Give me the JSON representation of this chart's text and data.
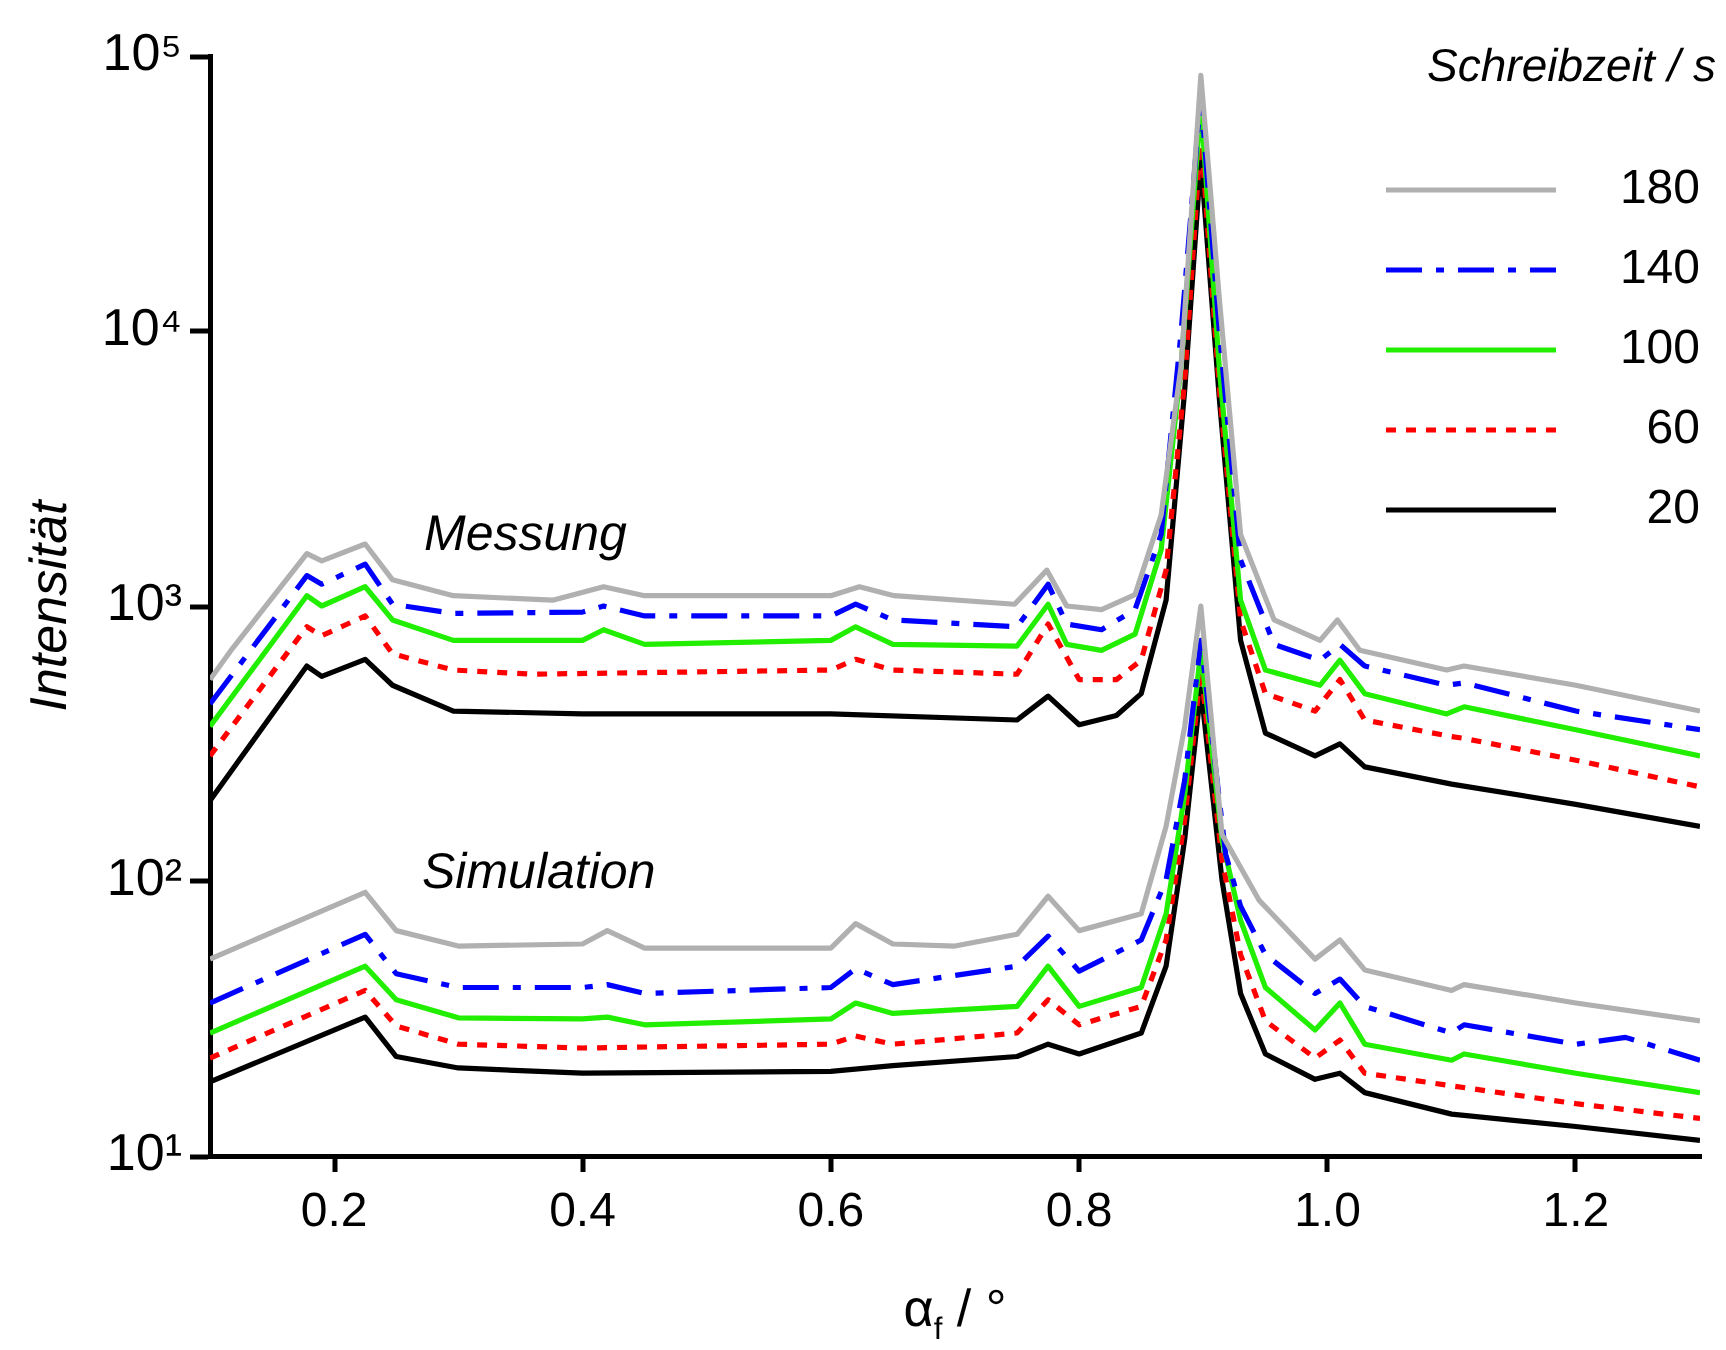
{
  "chart_data": {
    "type": "line",
    "xlabel": "α$_{f}$ / °",
    "ylabel": "Intensität",
    "legend_title": "Schreibzeit / s",
    "log": "y",
    "grid": false,
    "legend": "top right",
    "marker": "none",
    "xlim": [
      0.1,
      1.3
    ],
    "xticks": [
      0.2,
      0.4,
      0.6,
      0.8,
      {
        "value": 1,
        "label": "1.0"
      },
      1.2
    ],
    "ylim": [
      10,
      100000
    ],
    "yticks": [
      {
        "value": 10,
        "label": "10¹"
      },
      {
        "value": 100,
        "label": "10²"
      },
      {
        "value": 1000,
        "label": "10³"
      },
      {
        "value": 10000,
        "label": "10⁴"
      },
      {
        "value": 100000,
        "label": "10⁵"
      }
    ],
    "annotations": [
      "Messung",
      "Simulation"
    ],
    "series": [
      {
        "name": "180",
        "color": "#b0b0b0",
        "line_style": "solid",
        "x": [
          0.1,
          0.118,
          0.178,
          0.19,
          0.225,
          0.247,
          0.296,
          0.376,
          0.417,
          0.45,
          0.6,
          0.623,
          0.651,
          0.748,
          0.774,
          0.79,
          0.818,
          0.845,
          0.866,
          0.882,
          0.898,
          0.913,
          0.93,
          0.957,
          0.994,
          1.008,
          1.026,
          1.096,
          1.11,
          1.2,
          1.3
        ],
        "values": [
          540,
          700,
          1550,
          1460,
          1680,
          1245,
          1090,
          1050,
          1175,
          1090,
          1090,
          1175,
          1090,
          1015,
          1350,
          1000,
          970,
          1100,
          2140,
          7400,
          85000,
          12900,
          1820,
          890,
          750,
          890,
          690,
          585,
          605,
          515,
          415
        ]
      },
      {
        "name": "140",
        "color": "#0000ff",
        "line_style": "dashdot",
        "x": [
          0.1,
          0.178,
          0.19,
          0.225,
          0.247,
          0.296,
          0.4,
          0.417,
          0.45,
          0.6,
          0.62,
          0.65,
          0.75,
          0.775,
          0.79,
          0.818,
          0.845,
          0.866,
          0.882,
          0.898,
          0.913,
          0.93,
          0.957,
          0.994,
          1.01,
          1.03,
          1.096,
          1.11,
          1.2,
          1.3
        ],
        "values": [
          440,
          1290,
          1200,
          1420,
          1015,
          940,
          950,
          1000,
          920,
          920,
          1015,
          890,
          840,
          1200,
          860,
          820,
          970,
          1820,
          9800,
          72000,
          9800,
          1470,
          725,
          635,
          725,
          605,
          515,
          525,
          415,
          355
        ]
      },
      {
        "name": "100",
        "color": "#22ee00",
        "line_style": "solid",
        "x": [
          0.1,
          0.178,
          0.19,
          0.225,
          0.247,
          0.296,
          0.4,
          0.417,
          0.45,
          0.6,
          0.62,
          0.65,
          0.75,
          0.775,
          0.79,
          0.818,
          0.845,
          0.866,
          0.882,
          0.898,
          0.913,
          0.93,
          0.95,
          0.994,
          1.01,
          1.03,
          1.096,
          1.11,
          1.2,
          1.3
        ],
        "values": [
          365,
          1090,
          1000,
          1175,
          890,
          750,
          750,
          820,
          725,
          750,
          840,
          725,
          715,
          1015,
          725,
          690,
          790,
          1600,
          7400,
          66000,
          7200,
          1050,
          585,
          515,
          635,
          480,
          405,
          430,
          355,
          285
        ]
      },
      {
        "name": "60",
        "color": "#ff0000",
        "line_style": "dotted",
        "x": [
          0.1,
          0.178,
          0.19,
          0.225,
          0.247,
          0.296,
          0.36,
          0.6,
          0.62,
          0.65,
          0.75,
          0.775,
          0.8,
          0.83,
          0.85,
          0.87,
          0.885,
          0.898,
          0.913,
          0.93,
          0.95,
          0.99,
          1.01,
          1.03,
          1.1,
          1.11,
          1.2,
          1.3
        ],
        "values": [
          285,
          840,
          780,
          920,
          670,
          585,
          565,
          585,
          640,
          585,
          565,
          860,
          540,
          540,
          635,
          1350,
          6600,
          52000,
          6100,
          890,
          480,
          415,
          540,
          385,
          335,
          330,
          275,
          220
        ]
      },
      {
        "name": "20",
        "color": "#000000",
        "line_style": "solid",
        "x": [
          0.1,
          0.178,
          0.19,
          0.225,
          0.247,
          0.296,
          0.4,
          0.6,
          0.75,
          0.775,
          0.8,
          0.83,
          0.85,
          0.87,
          0.885,
          0.898,
          0.913,
          0.93,
          0.95,
          0.99,
          1.01,
          1.03,
          1.1,
          1.2,
          1.3
        ],
        "values": [
          196,
          605,
          555,
          640,
          515,
          415,
          405,
          405,
          385,
          470,
          370,
          400,
          480,
          1050,
          6100,
          42000,
          5600,
          750,
          345,
          285,
          315,
          260,
          225,
          190,
          158
        ]
      },
      {
        "color": "#b0b0b0",
        "line_style": "solid",
        "x": [
          0.1,
          0.225,
          0.25,
          0.3,
          0.4,
          0.42,
          0.45,
          0.6,
          0.62,
          0.65,
          0.7,
          0.75,
          0.775,
          0.8,
          0.85,
          0.87,
          0.885,
          0.898,
          0.915,
          0.945,
          0.99,
          1.01,
          1.03,
          1.1,
          1.11,
          1.2,
          1.3
        ],
        "values": [
          52,
          91,
          66,
          58,
          59,
          66,
          57,
          57,
          70,
          59,
          58,
          64,
          88,
          66,
          76,
          158,
          365,
          1000,
          148,
          85,
          52,
          61,
          47.5,
          40,
          42,
          36,
          31
        ]
      },
      {
        "color": "#0000ff",
        "line_style": "dashdot",
        "x": [
          0.1,
          0.225,
          0.25,
          0.3,
          0.4,
          0.42,
          0.45,
          0.6,
          0.62,
          0.65,
          0.75,
          0.775,
          0.8,
          0.85,
          0.87,
          0.885,
          0.898,
          0.918,
          0.93,
          0.95,
          0.99,
          1.01,
          1.03,
          1.1,
          1.11,
          1.2,
          1.24,
          1.3
        ],
        "values": [
          36,
          64,
          46,
          41,
          41,
          42,
          39,
          41,
          48,
          42,
          49,
          63,
          47,
          61,
          101,
          233,
          750,
          125,
          81,
          54,
          39,
          44,
          35,
          28,
          30,
          25.5,
          27,
          22.3
        ]
      },
      {
        "color": "#22ee00",
        "line_style": "solid",
        "x": [
          0.1,
          0.225,
          0.25,
          0.3,
          0.4,
          0.42,
          0.45,
          0.6,
          0.62,
          0.65,
          0.75,
          0.775,
          0.8,
          0.85,
          0.87,
          0.885,
          0.898,
          0.915,
          0.93,
          0.95,
          0.99,
          1.01,
          1.03,
          1.1,
          1.11,
          1.2,
          1.3
        ],
        "values": [
          28,
          49,
          37,
          31.8,
          31.5,
          32,
          30,
          31.5,
          36,
          33,
          35,
          49,
          35,
          41,
          76,
          207,
          690,
          142,
          72,
          41,
          28.7,
          36,
          25.5,
          22.3,
          23.5,
          20,
          17
        ]
      },
      {
        "color": "#ff0000",
        "line_style": "dotted",
        "x": [
          0.1,
          0.225,
          0.25,
          0.3,
          0.4,
          0.6,
          0.62,
          0.65,
          0.75,
          0.775,
          0.8,
          0.85,
          0.87,
          0.885,
          0.898,
          0.915,
          0.93,
          0.95,
          0.99,
          1.01,
          1.03,
          1.1,
          1.2,
          1.3
        ],
        "values": [
          22.7,
          40,
          29.7,
          25.5,
          24.7,
          25.5,
          27.3,
          25.5,
          28,
          37,
          30,
          35,
          61,
          167,
          585,
          120,
          54,
          31,
          22.7,
          26.4,
          20,
          18,
          15.5,
          13.7
        ]
      },
      {
        "color": "#000000",
        "line_style": "solid",
        "x": [
          0.1,
          0.225,
          0.25,
          0.3,
          0.4,
          0.6,
          0.65,
          0.75,
          0.775,
          0.8,
          0.85,
          0.87,
          0.885,
          0.898,
          0.915,
          0.93,
          0.95,
          0.99,
          1.01,
          1.03,
          1.1,
          1.2,
          1.3
        ],
        "values": [
          18.6,
          32,
          23,
          20.9,
          20,
          20.3,
          21.3,
          23,
          25.5,
          23.5,
          28,
          49,
          142,
          500,
          101,
          39,
          23.5,
          19,
          20,
          17,
          14.2,
          12.8,
          11.4
        ]
      }
    ]
  }
}
